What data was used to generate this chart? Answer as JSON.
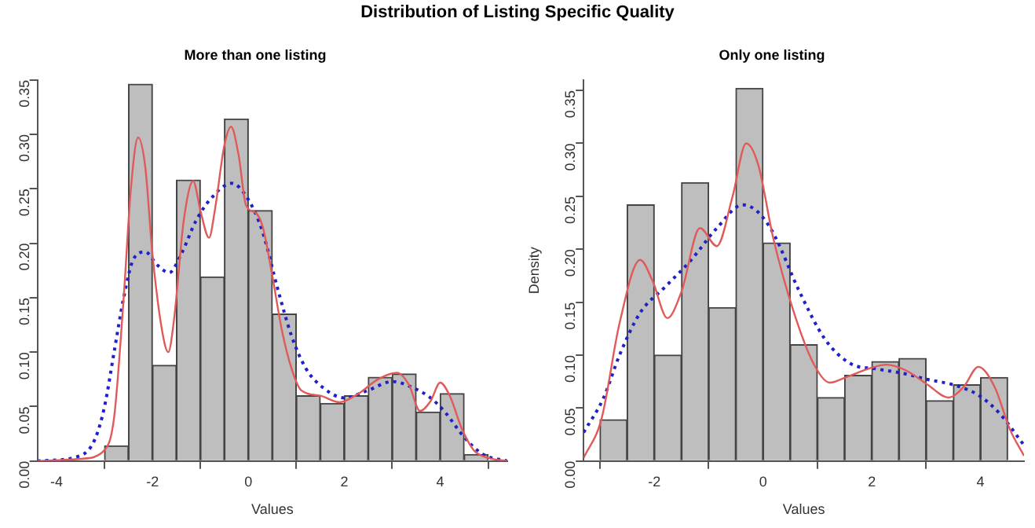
{
  "chart_data": [
    {
      "type": "histogram",
      "title": "Distribution of Listing Specific Quality",
      "subtitle": "More than one listing",
      "xlabel": "Values",
      "bins": [
        -3,
        -2.5,
        -2,
        -1.5,
        -1,
        -0.5,
        0,
        0.5,
        1,
        1.5,
        2,
        2.5,
        3,
        3.5,
        4,
        4.5,
        5
      ],
      "values": [
        0.014,
        0.346,
        0.088,
        0.258,
        0.169,
        0.314,
        0.23,
        0.135,
        0.06,
        0.053,
        0.06,
        0.077,
        0.08,
        0.045,
        0.062,
        0.006
      ],
      "color": "#bebebe",
      "series": [
        {
          "type": "line",
          "color": "#e05a5a",
          "line_style": "solid",
          "x": [
            -4.4,
            -3.5,
            -3.0,
            -2.8,
            -2.6,
            -2.45,
            -2.3,
            -2.15,
            -2.0,
            -1.8,
            -1.67,
            -1.55,
            -1.35,
            -1.15,
            -1.0,
            -0.82,
            -0.7,
            -0.5,
            -0.36,
            -0.2,
            -0.05,
            0.15,
            0.3,
            0.5,
            0.7,
            0.9,
            1.1,
            1.5,
            1.9,
            2.3,
            2.7,
            3.1,
            3.35,
            3.58,
            3.8,
            4.0,
            4.2,
            4.45,
            4.7,
            5.0,
            5.4
          ],
          "values": [
            0,
            0.002,
            0.01,
            0.04,
            0.15,
            0.25,
            0.297,
            0.27,
            0.19,
            0.12,
            0.1,
            0.13,
            0.22,
            0.257,
            0.23,
            0.205,
            0.23,
            0.29,
            0.307,
            0.28,
            0.235,
            0.228,
            0.215,
            0.17,
            0.12,
            0.085,
            0.065,
            0.06,
            0.054,
            0.062,
            0.075,
            0.081,
            0.07,
            0.046,
            0.055,
            0.072,
            0.06,
            0.03,
            0.01,
            0.003,
            0
          ]
        },
        {
          "type": "line",
          "color": "#2020c8",
          "line_style": "dotted",
          "x": [
            -4.4,
            -3.5,
            -3.2,
            -3.0,
            -2.8,
            -2.6,
            -2.4,
            -2.15,
            -1.9,
            -1.65,
            -1.4,
            -1.1,
            -0.8,
            -0.35,
            0.0,
            0.3,
            0.6,
            0.9,
            1.2,
            1.6,
            2.0,
            2.5,
            3.0,
            3.4,
            3.8,
            4.1,
            4.5,
            4.9,
            5.4
          ],
          "values": [
            0,
            0.005,
            0.02,
            0.05,
            0.1,
            0.15,
            0.185,
            0.192,
            0.18,
            0.173,
            0.19,
            0.22,
            0.24,
            0.255,
            0.24,
            0.21,
            0.16,
            0.115,
            0.085,
            0.066,
            0.058,
            0.065,
            0.073,
            0.068,
            0.058,
            0.045,
            0.022,
            0.006,
            0
          ]
        }
      ],
      "xlim": [
        -4.4,
        5.4
      ],
      "xticks": [
        -4,
        -2,
        0,
        2,
        4
      ],
      "ylim": [
        0,
        0.35
      ],
      "yticks": [
        {
          "value": 0,
          "label": "0.00"
        },
        {
          "value": 0.05,
          "label": "0.05"
        },
        {
          "value": 0.1,
          "label": "0.10"
        },
        {
          "value": 0.15,
          "label": "0.15"
        },
        {
          "value": 0.2,
          "label": "0.20"
        },
        {
          "value": 0.25,
          "label": "0.25"
        },
        {
          "value": 0.3,
          "label": "0.30"
        },
        {
          "value": 0.35,
          "label": "0.35"
        }
      ],
      "grid": false,
      "legend": false
    },
    {
      "type": "histogram",
      "subtitle": "Only one listing",
      "xlabel": "Values",
      "ylabel": "Density",
      "bins": [
        -3,
        -2.5,
        -2,
        -1.5,
        -1,
        -0.5,
        0,
        0.5,
        1,
        1.5,
        2,
        2.5,
        3,
        3.5,
        4,
        4.5
      ],
      "values": [
        0.039,
        0.242,
        0.1,
        0.263,
        0.145,
        0.352,
        0.206,
        0.11,
        0.06,
        0.081,
        0.094,
        0.097,
        0.057,
        0.072,
        0.079
      ],
      "color": "#bebebe",
      "series": [
        {
          "type": "line",
          "color": "#e05a5a",
          "line_style": "solid",
          "x": [
            -3.3,
            -2.97,
            -2.64,
            -2.26,
            -2.03,
            -1.76,
            -1.5,
            -1.16,
            -0.85,
            -0.56,
            -0.31,
            -0.09,
            0.19,
            0.57,
            0.95,
            1.23,
            1.52,
            1.99,
            2.27,
            2.65,
            3.03,
            3.41,
            3.69,
            3.96,
            4.26,
            4.54,
            4.8
          ],
          "values": [
            0.003,
            0.04,
            0.13,
            0.19,
            0.17,
            0.135,
            0.16,
            0.22,
            0.203,
            0.25,
            0.3,
            0.28,
            0.21,
            0.14,
            0.09,
            0.074,
            0.079,
            0.088,
            0.091,
            0.085,
            0.072,
            0.06,
            0.07,
            0.089,
            0.07,
            0.03,
            0.005
          ]
        },
        {
          "type": "line",
          "color": "#2020c8",
          "line_style": "dotted",
          "x": [
            -3.3,
            -2.93,
            -2.64,
            -2.26,
            -1.79,
            -1.32,
            -0.85,
            -0.37,
            -0.09,
            0.19,
            0.67,
            1.14,
            1.61,
            2.09,
            2.56,
            3.03,
            3.5,
            3.97,
            4.35,
            4.8
          ],
          "values": [
            0.027,
            0.06,
            0.1,
            0.14,
            0.165,
            0.19,
            0.22,
            0.242,
            0.235,
            0.215,
            0.16,
            0.115,
            0.092,
            0.087,
            0.083,
            0.077,
            0.072,
            0.062,
            0.045,
            0.015
          ]
        }
      ],
      "xlim": [
        -3.3,
        4.8
      ],
      "xticks": [
        -2,
        0,
        2,
        4
      ],
      "ylim": [
        0,
        0.36
      ],
      "yticks": [
        {
          "value": 0,
          "label": "0.00"
        },
        {
          "value": 0.05,
          "label": "0.05"
        },
        {
          "value": 0.1,
          "label": "0.10"
        },
        {
          "value": 0.15,
          "label": "0.15"
        },
        {
          "value": 0.2,
          "label": "0.20"
        },
        {
          "value": 0.25,
          "label": "0.25"
        },
        {
          "value": 0.3,
          "label": "0.30"
        },
        {
          "value": 0.35,
          "label": "0.35"
        }
      ],
      "grid": false,
      "legend": false
    }
  ]
}
